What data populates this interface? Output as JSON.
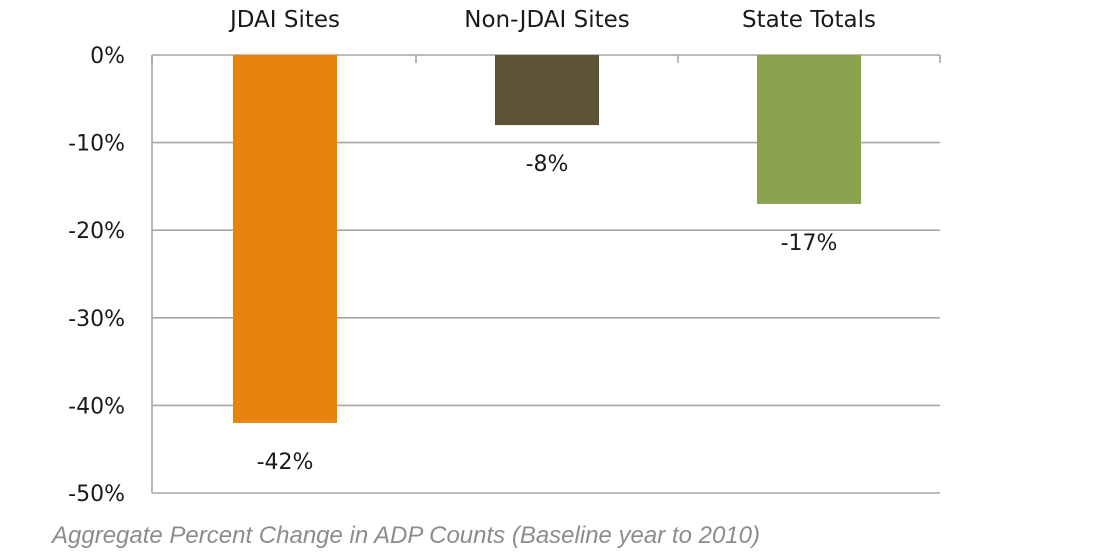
{
  "chart_data": {
    "type": "bar",
    "categories": [
      "JDAI Sites",
      "Non-JDAI Sites",
      "State Totals"
    ],
    "values": [
      -42,
      -8,
      -17
    ],
    "data_labels": [
      "-42%",
      "-8%",
      "-17%"
    ],
    "colors": [
      "#e8830c",
      "#5c5236",
      "#89a24e"
    ],
    "ylim": [
      -50,
      0
    ],
    "y_ticks": [
      0,
      -10,
      -20,
      -30,
      -40,
      -50
    ],
    "y_tick_labels": [
      "0%",
      "-10%",
      "-20%",
      "-30%",
      "-40%",
      "-50%"
    ],
    "category_axis_position": "top",
    "grid": true,
    "legend": false
  },
  "caption": "Aggregate Percent Change in ADP Counts (Baseline year to 2010)"
}
